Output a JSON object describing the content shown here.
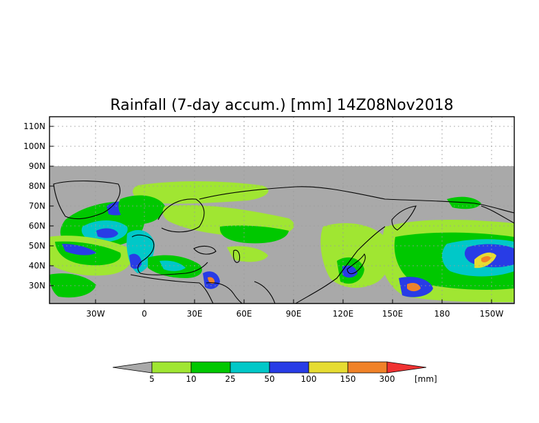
{
  "title": "Rainfall (7-day accum.) [mm] 14Z08Nov2018",
  "map": {
    "lat_labels": [
      "110N",
      "100N",
      "90N",
      "80N",
      "70N",
      "60N",
      "50N",
      "40N",
      "30N"
    ],
    "lon_labels": [
      "30W",
      "0",
      "30E",
      "60E",
      "90E",
      "120E",
      "150E",
      "180",
      "150W"
    ],
    "no_data_color": "#a9a9a9",
    "blank_color": "#ffffff"
  },
  "legend": {
    "thresholds": [
      "5",
      "10",
      "25",
      "50",
      "100",
      "150",
      "300"
    ],
    "unit": "[mm]",
    "colors": [
      "#a9a9a9",
      "#a0e632",
      "#00c800",
      "#00c8c8",
      "#283ce6",
      "#e6dc32",
      "#f08228",
      "#f03232"
    ],
    "bins": [
      "<5",
      "5-10",
      "10-25",
      "25-50",
      "50-100",
      "100-150",
      "150-300",
      ">300"
    ]
  }
}
